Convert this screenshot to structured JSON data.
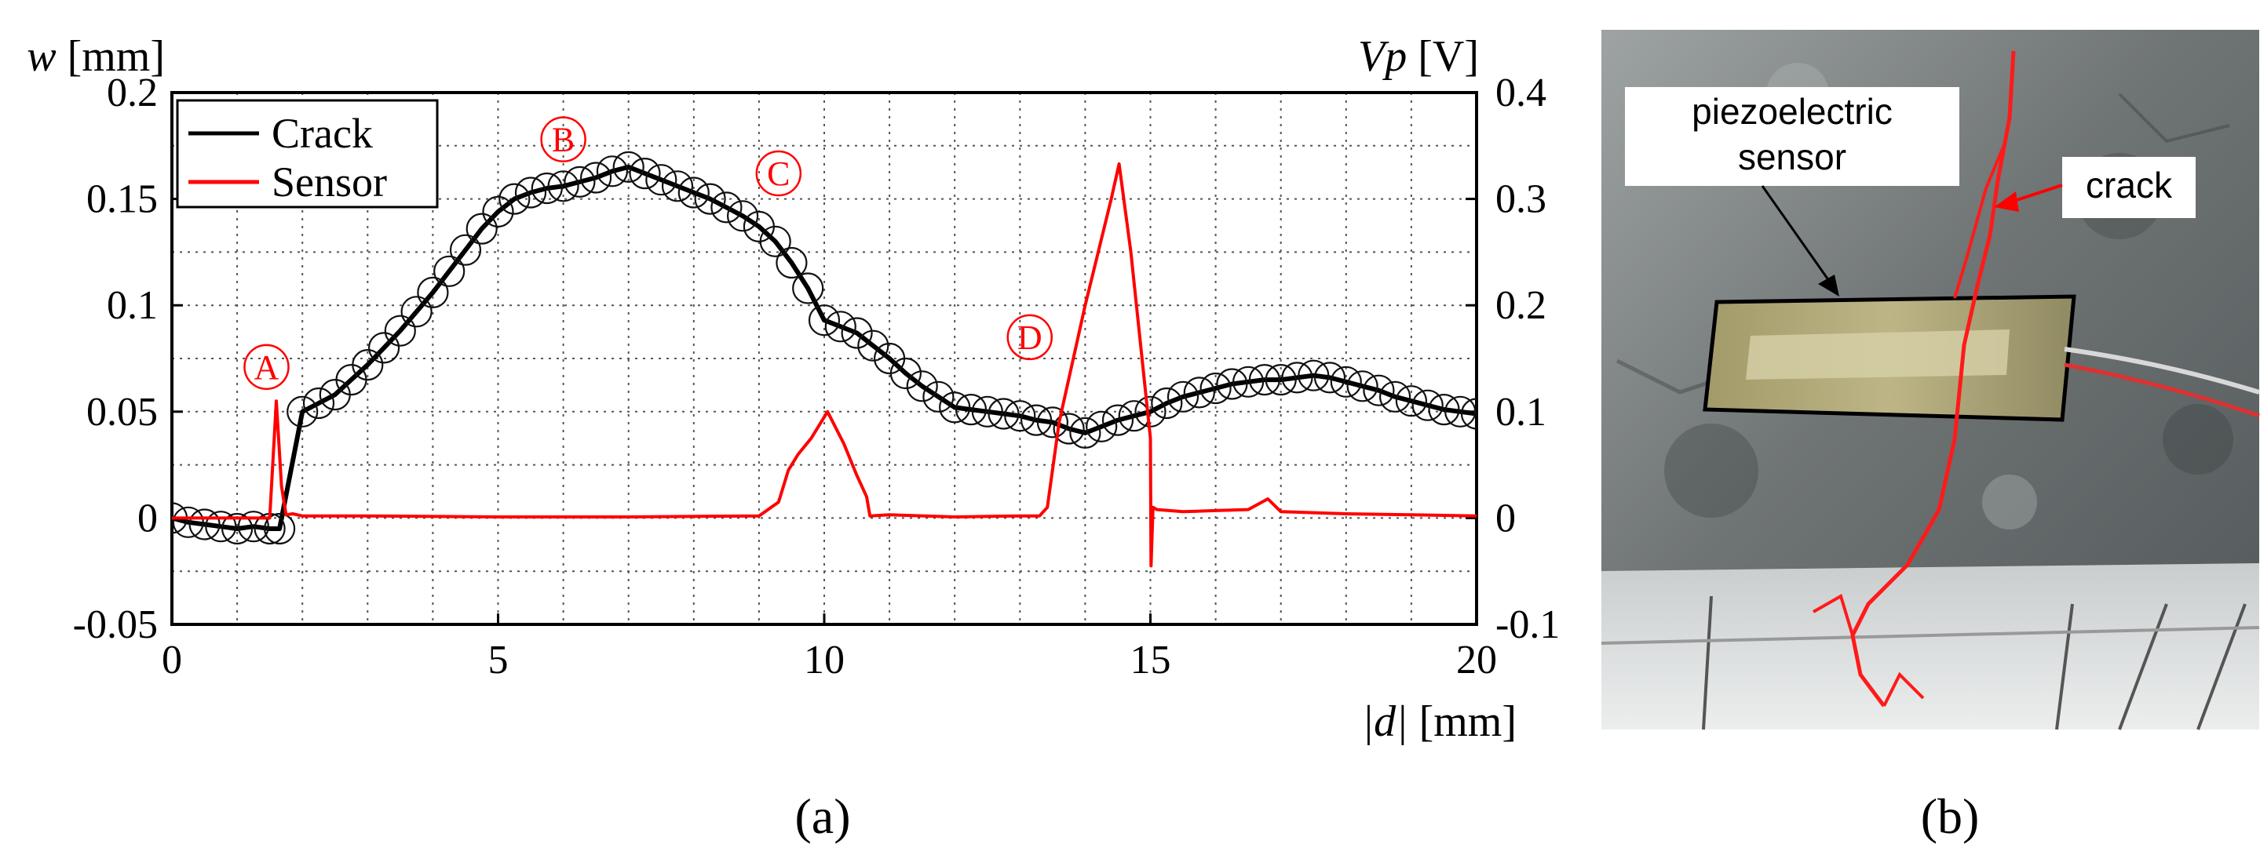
{
  "panel_a_caption": "(a)",
  "panel_b_caption": "(b)",
  "chart_data": {
    "type": "line",
    "y_left_label_var": "w",
    "y_left_label_unit": " [mm]",
    "y_right_label_var": "Vp",
    "y_right_label_unit": " [V]",
    "x_label_var": "|d|",
    "x_label_unit": " [mm]",
    "xlim": [
      0,
      20
    ],
    "ylim_left": [
      -0.05,
      0.2
    ],
    "ylim_right": [
      -0.1,
      0.4
    ],
    "x_ticks": [
      "0",
      "5",
      "10",
      "15",
      "20"
    ],
    "y_left_ticks": [
      "-0.05",
      "0",
      "0.05",
      "0.1",
      "0.15",
      "0.2"
    ],
    "y_right_ticks": [
      "-0.1",
      "0",
      "0.1",
      "0.2",
      "0.3",
      "0.4"
    ],
    "grid": true,
    "legend_position": "top-left",
    "series": [
      {
        "name": "Crack",
        "color": "#000000",
        "axis": "left",
        "marker": "open-circle",
        "x": [
          0,
          0.25,
          0.5,
          0.75,
          1.0,
          1.25,
          1.5,
          1.65,
          2.0,
          2.25,
          2.5,
          2.75,
          3.0,
          3.25,
          3.5,
          3.75,
          4.0,
          4.25,
          4.5,
          4.75,
          5.0,
          5.25,
          5.5,
          5.75,
          6.0,
          6.25,
          6.5,
          6.75,
          7.0,
          7.25,
          7.5,
          7.75,
          8.0,
          8.25,
          8.5,
          8.75,
          9.0,
          9.25,
          9.5,
          9.75,
          10.0,
          10.25,
          10.5,
          10.75,
          11.0,
          11.25,
          11.5,
          11.75,
          12.0,
          12.25,
          12.5,
          12.75,
          13.0,
          13.25,
          13.5,
          13.75,
          14.0,
          14.25,
          14.5,
          14.75,
          15.0,
          15.25,
          15.5,
          15.75,
          16.0,
          16.25,
          16.5,
          16.75,
          17.0,
          17.25,
          17.5,
          17.75,
          18.0,
          18.25,
          18.5,
          18.75,
          19.0,
          19.25,
          19.5,
          19.75,
          20.0
        ],
        "values": [
          0.0,
          -0.002,
          -0.003,
          -0.004,
          -0.005,
          -0.004,
          -0.005,
          -0.005,
          0.05,
          0.054,
          0.058,
          0.065,
          0.072,
          0.08,
          0.088,
          0.097,
          0.106,
          0.116,
          0.126,
          0.136,
          0.144,
          0.15,
          0.153,
          0.155,
          0.156,
          0.158,
          0.16,
          0.163,
          0.165,
          0.162,
          0.159,
          0.156,
          0.153,
          0.15,
          0.146,
          0.142,
          0.137,
          0.13,
          0.12,
          0.108,
          0.093,
          0.09,
          0.087,
          0.081,
          0.075,
          0.068,
          0.062,
          0.057,
          0.052,
          0.051,
          0.05,
          0.049,
          0.048,
          0.046,
          0.045,
          0.042,
          0.04,
          0.043,
          0.046,
          0.048,
          0.05,
          0.054,
          0.057,
          0.059,
          0.061,
          0.063,
          0.064,
          0.065,
          0.065,
          0.066,
          0.067,
          0.066,
          0.064,
          0.062,
          0.06,
          0.057,
          0.055,
          0.053,
          0.051,
          0.05,
          0.049
        ]
      },
      {
        "name": "Sensor",
        "color": "#ff0000",
        "axis": "right",
        "x": [
          0,
          1.5,
          1.6,
          1.68,
          1.75,
          1.85,
          2.0,
          3.0,
          5.0,
          7.0,
          9.0,
          9.3,
          9.45,
          9.6,
          9.8,
          10.05,
          10.3,
          10.5,
          10.65,
          10.7,
          11.0,
          12.0,
          13.0,
          13.3,
          13.42,
          13.6,
          14.0,
          14.4,
          14.52,
          14.7,
          15.0,
          15.01,
          15.04,
          15.1,
          15.5,
          16.0,
          16.5,
          16.8,
          17.0,
          17.5,
          18.0,
          19.0,
          20.0
        ],
        "values": [
          0.0,
          0.0,
          0.11,
          0.03,
          0.003,
          0.004,
          0.002,
          0.002,
          0.001,
          0.001,
          0.002,
          0.015,
          0.045,
          0.06,
          0.075,
          0.1,
          0.07,
          0.04,
          0.02,
          0.002,
          0.003,
          0.001,
          0.002,
          0.002,
          0.01,
          0.09,
          0.2,
          0.3,
          0.333,
          0.25,
          0.075,
          -0.045,
          0.01,
          0.008,
          0.006,
          0.007,
          0.008,
          0.018,
          0.006,
          0.005,
          0.004,
          0.003,
          0.002
        ]
      }
    ],
    "annotations": [
      {
        "label": "A",
        "x": 1.45,
        "y_left": 0.071
      },
      {
        "label": "B",
        "x": 6.0,
        "y_left": 0.178
      },
      {
        "label": "C",
        "x": 9.3,
        "y_left": 0.162
      },
      {
        "label": "D",
        "x": 13.15,
        "y_left": 0.085
      }
    ]
  },
  "photo_labels": {
    "sensor_line1": "piezoelectric",
    "sensor_line2": "sensor",
    "crack": "crack"
  }
}
